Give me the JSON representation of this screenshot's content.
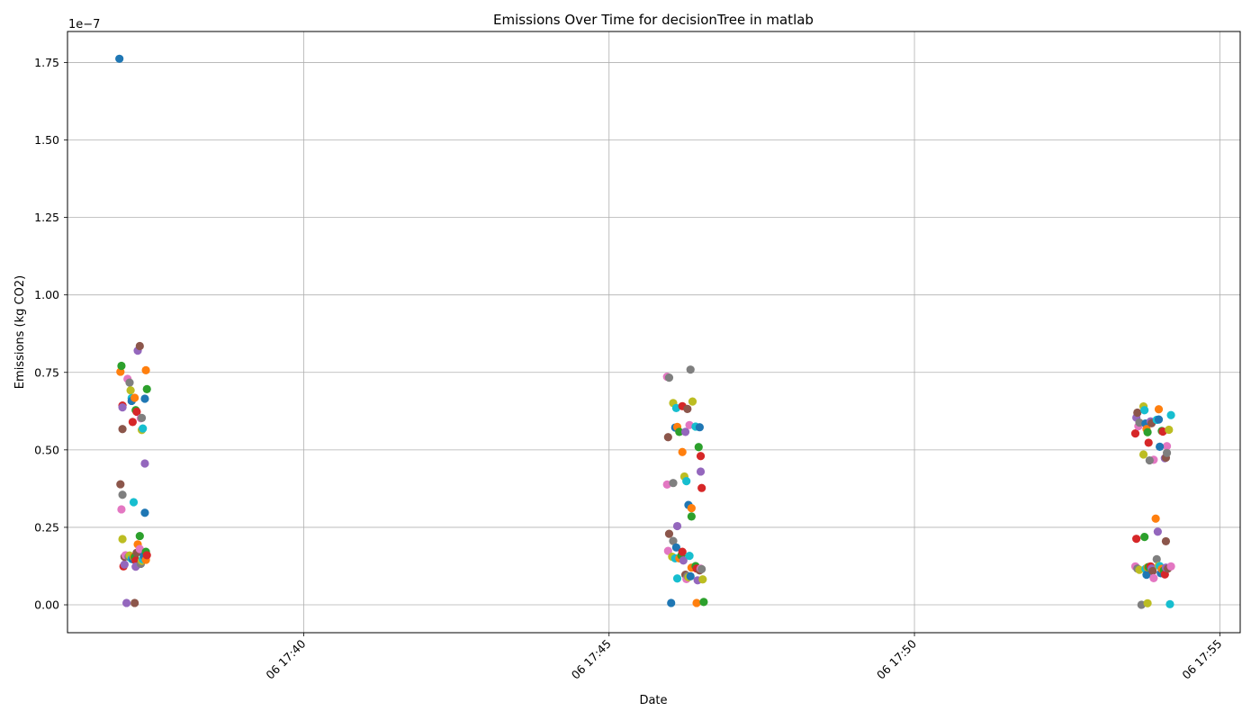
{
  "chart_data": {
    "type": "scatter",
    "title": "Emissions Over Time for decisionTree in matlab",
    "xlabel": "Date",
    "ylabel": "Emissions (kg CO2)",
    "y_offset_label": "1e−7",
    "y_unit_multiplier": 1e-07,
    "xlim": [
      "06 17:36:08",
      "06 17:55:20"
    ],
    "ylim": [
      -0.09,
      1.85
    ],
    "grid": true,
    "legend": "none",
    "x_ticks": [
      {
        "value": "06 17:40:00",
        "label": "06 17:40"
      },
      {
        "value": "06 17:45:00",
        "label": "06 17:45"
      },
      {
        "value": "06 17:50:00",
        "label": "06 17:50"
      },
      {
        "value": "06 17:55:00",
        "label": "06 17:55"
      }
    ],
    "y_ticks": [
      {
        "value": 0.0,
        "label": "0.00"
      },
      {
        "value": 0.25,
        "label": "0.25"
      },
      {
        "value": 0.5,
        "label": "0.50"
      },
      {
        "value": 0.75,
        "label": "0.75"
      },
      {
        "value": 1.0,
        "label": "1.00"
      },
      {
        "value": 1.25,
        "label": "1.25"
      },
      {
        "value": 1.5,
        "label": "1.50"
      },
      {
        "value": 1.75,
        "label": "1.75"
      }
    ],
    "palette": [
      "#1f77b4",
      "#ff7f0e",
      "#2ca02c",
      "#d62728",
      "#9467bd",
      "#8c564b",
      "#e377c2",
      "#7f7f7f",
      "#bcbd22",
      "#17becf"
    ],
    "series": [
      {
        "name": "",
        "points": [
          [
            "06 17:36:59",
            1.762
          ],
          [
            "06 17:37:00",
            0.752
          ],
          [
            "06 17:37:01",
            0.771
          ],
          [
            "06 17:37:02",
            0.643
          ],
          [
            "06 17:37:02",
            0.637
          ],
          [
            "06 17:37:02",
            0.567
          ],
          [
            "06 17:37:07",
            0.729
          ],
          [
            "06 17:37:09",
            0.717
          ],
          [
            "06 17:37:10",
            0.692
          ],
          [
            "06 17:37:11",
            0.667
          ],
          [
            "06 17:37:11",
            0.658
          ],
          [
            "06 17:37:14",
            0.668
          ],
          [
            "06 17:37:15",
            0.628
          ],
          [
            "06 17:37:16",
            0.623
          ],
          [
            "06 17:37:17",
            0.82
          ],
          [
            "06 17:37:19",
            0.835
          ],
          [
            "06 17:37:20",
            0.602
          ],
          [
            "06 17:37:21",
            0.603
          ],
          [
            "06 17:37:21",
            0.564
          ],
          [
            "06 17:37:22",
            0.569
          ],
          [
            "06 17:37:24",
            0.665
          ],
          [
            "06 17:37:25",
            0.757
          ],
          [
            "06 17:37:26",
            0.696
          ],
          [
            "06 17:37:12",
            0.59
          ],
          [
            "06 17:37:24",
            0.456
          ],
          [
            "06 17:37:00",
            0.389
          ],
          [
            "06 17:37:01",
            0.308
          ],
          [
            "06 17:37:02",
            0.355
          ],
          [
            "06 17:37:02",
            0.212
          ],
          [
            "06 17:37:13",
            0.331
          ],
          [
            "06 17:37:24",
            0.297
          ],
          [
            "06 17:37:17",
            0.195
          ],
          [
            "06 17:37:19",
            0.222
          ],
          [
            "06 17:37:03",
            0.124
          ],
          [
            "06 17:37:04",
            0.13
          ],
          [
            "06 17:37:04",
            0.155
          ],
          [
            "06 17:37:05",
            0.16
          ],
          [
            "06 17:37:08",
            0.155
          ],
          [
            "06 17:37:09",
            0.159
          ],
          [
            "06 17:37:11",
            0.148
          ],
          [
            "06 17:37:12",
            0.147
          ],
          [
            "06 17:37:13",
            0.155
          ],
          [
            "06 17:37:14",
            0.154
          ],
          [
            "06 17:37:15",
            0.143
          ],
          [
            "06 17:37:15",
            0.123
          ],
          [
            "06 17:37:16",
            0.168
          ],
          [
            "06 17:37:19",
            0.18
          ],
          [
            "06 17:37:20",
            0.132
          ],
          [
            "06 17:37:21",
            0.142
          ],
          [
            "06 17:37:22",
            0.147
          ],
          [
            "06 17:37:23",
            0.158
          ],
          [
            "06 17:37:25",
            0.145
          ],
          [
            "06 17:37:25",
            0.171
          ],
          [
            "06 17:37:26",
            0.16
          ],
          [
            "06 17:37:06",
            0.006
          ],
          [
            "06 17:37:14",
            0.006
          ],
          [
            "06 17:45:57",
            0.736
          ],
          [
            "06 17:45:59",
            0.733
          ],
          [
            "06 17:46:03",
            0.651
          ],
          [
            "06 17:46:06",
            0.635
          ],
          [
            "06 17:46:05",
            0.572
          ],
          [
            "06 17:46:07",
            0.574
          ],
          [
            "06 17:46:09",
            0.558
          ],
          [
            "06 17:46:12",
            0.641
          ],
          [
            "06 17:46:15",
            0.558
          ],
          [
            "06 17:46:17",
            0.632
          ],
          [
            "06 17:46:19",
            0.58
          ],
          [
            "06 17:46:20",
            0.759
          ],
          [
            "06 17:46:22",
            0.656
          ],
          [
            "06 17:46:25",
            0.575
          ],
          [
            "06 17:46:29",
            0.573
          ],
          [
            "06 17:46:12",
            0.493
          ],
          [
            "06 17:46:28",
            0.509
          ],
          [
            "06 17:46:30",
            0.48
          ],
          [
            "06 17:46:30",
            0.43
          ],
          [
            "06 17:45:58",
            0.541
          ],
          [
            "06 17:45:57",
            0.388
          ],
          [
            "06 17:46:03",
            0.393
          ],
          [
            "06 17:46:14",
            0.414
          ],
          [
            "06 17:46:16",
            0.399
          ],
          [
            "06 17:46:18",
            0.322
          ],
          [
            "06 17:46:21",
            0.312
          ],
          [
            "06 17:46:21",
            0.285
          ],
          [
            "06 17:46:31",
            0.377
          ],
          [
            "06 17:46:07",
            0.254
          ],
          [
            "06 17:45:59",
            0.229
          ],
          [
            "06 17:45:58",
            0.174
          ],
          [
            "06 17:46:03",
            0.206
          ],
          [
            "06 17:46:02",
            0.155
          ],
          [
            "06 17:46:05",
            0.15
          ],
          [
            "06 17:46:06",
            0.185
          ],
          [
            "06 17:46:09",
            0.15
          ],
          [
            "06 17:46:11",
            0.159
          ],
          [
            "06 17:46:12",
            0.171
          ],
          [
            "06 17:46:13",
            0.143
          ],
          [
            "06 17:46:15",
            0.097
          ],
          [
            "06 17:46:16",
            0.083
          ],
          [
            "06 17:46:17",
            0.093
          ],
          [
            "06 17:46:18",
            0.089
          ],
          [
            "06 17:46:19",
            0.158
          ],
          [
            "06 17:46:20",
            0.092
          ],
          [
            "06 17:46:21",
            0.12
          ],
          [
            "06 17:46:25",
            0.125
          ],
          [
            "06 17:46:26",
            0.117
          ],
          [
            "06 17:46:27",
            0.079
          ],
          [
            "06 17:46:29",
            0.111
          ],
          [
            "06 17:46:30",
            0.117
          ],
          [
            "06 17:46:31",
            0.115
          ],
          [
            "06 17:46:32",
            0.082
          ],
          [
            "06 17:46:07",
            0.085
          ],
          [
            "06 17:46:01",
            0.006
          ],
          [
            "06 17:46:26",
            0.006
          ],
          [
            "06 17:46:33",
            0.009
          ],
          [
            "06 17:53:37",
            0.553
          ],
          [
            "06 17:53:38",
            0.604
          ],
          [
            "06 17:53:39",
            0.62
          ],
          [
            "06 17:53:40",
            0.576
          ],
          [
            "06 17:53:41",
            0.588
          ],
          [
            "06 17:53:45",
            0.64
          ],
          [
            "06 17:53:46",
            0.628
          ],
          [
            "06 17:53:47",
            0.585
          ],
          [
            "06 17:53:48",
            0.567
          ],
          [
            "06 17:53:49",
            0.557
          ],
          [
            "06 17:53:50",
            0.523
          ],
          [
            "06 17:53:52",
            0.592
          ],
          [
            "06 17:53:53",
            0.586
          ],
          [
            "06 17:53:55",
            0.468
          ],
          [
            "06 17:53:51",
            0.466
          ],
          [
            "06 17:53:45",
            0.485
          ],
          [
            "06 17:53:58",
            0.597
          ],
          [
            "06 17:54:00",
            0.598
          ],
          [
            "06 17:54:00",
            0.631
          ],
          [
            "06 17:54:03",
            0.561
          ],
          [
            "06 17:54:04",
            0.559
          ],
          [
            "06 17:54:06",
            0.473
          ],
          [
            "06 17:54:07",
            0.475
          ],
          [
            "06 17:54:08",
            0.512
          ],
          [
            "06 17:54:08",
            0.49
          ],
          [
            "06 17:54:10",
            0.565
          ],
          [
            "06 17:54:12",
            0.612
          ],
          [
            "06 17:54:01",
            0.51
          ],
          [
            "06 17:53:57",
            0.278
          ],
          [
            "06 17:53:46",
            0.219
          ],
          [
            "06 17:53:38",
            0.213
          ],
          [
            "06 17:53:59",
            0.236
          ],
          [
            "06 17:54:07",
            0.205
          ],
          [
            "06 17:53:37",
            0.124
          ],
          [
            "06 17:53:39",
            0.117
          ],
          [
            "06 17:53:41",
            0.113
          ],
          [
            "06 17:53:47",
            0.116
          ],
          [
            "06 17:53:48",
            0.097
          ],
          [
            "06 17:53:49",
            0.121
          ],
          [
            "06 17:53:50",
            0.122
          ],
          [
            "06 17:53:52",
            0.124
          ],
          [
            "06 17:53:53",
            0.117
          ],
          [
            "06 17:53:54",
            0.109
          ],
          [
            "06 17:53:55",
            0.086
          ],
          [
            "06 17:53:58",
            0.147
          ],
          [
            "06 17:54:00",
            0.126
          ],
          [
            "06 17:54:01",
            0.125
          ],
          [
            "06 17:54:02",
            0.102
          ],
          [
            "06 17:54:03",
            0.116
          ],
          [
            "06 17:54:05",
            0.111
          ],
          [
            "06 17:54:06",
            0.098
          ],
          [
            "06 17:54:07",
            0.12
          ],
          [
            "06 17:54:09",
            0.117
          ],
          [
            "06 17:54:12",
            0.124
          ],
          [
            "06 17:53:43",
            0.0
          ],
          [
            "06 17:53:49",
            0.005
          ],
          [
            "06 17:54:11",
            0.002
          ]
        ]
      }
    ]
  }
}
